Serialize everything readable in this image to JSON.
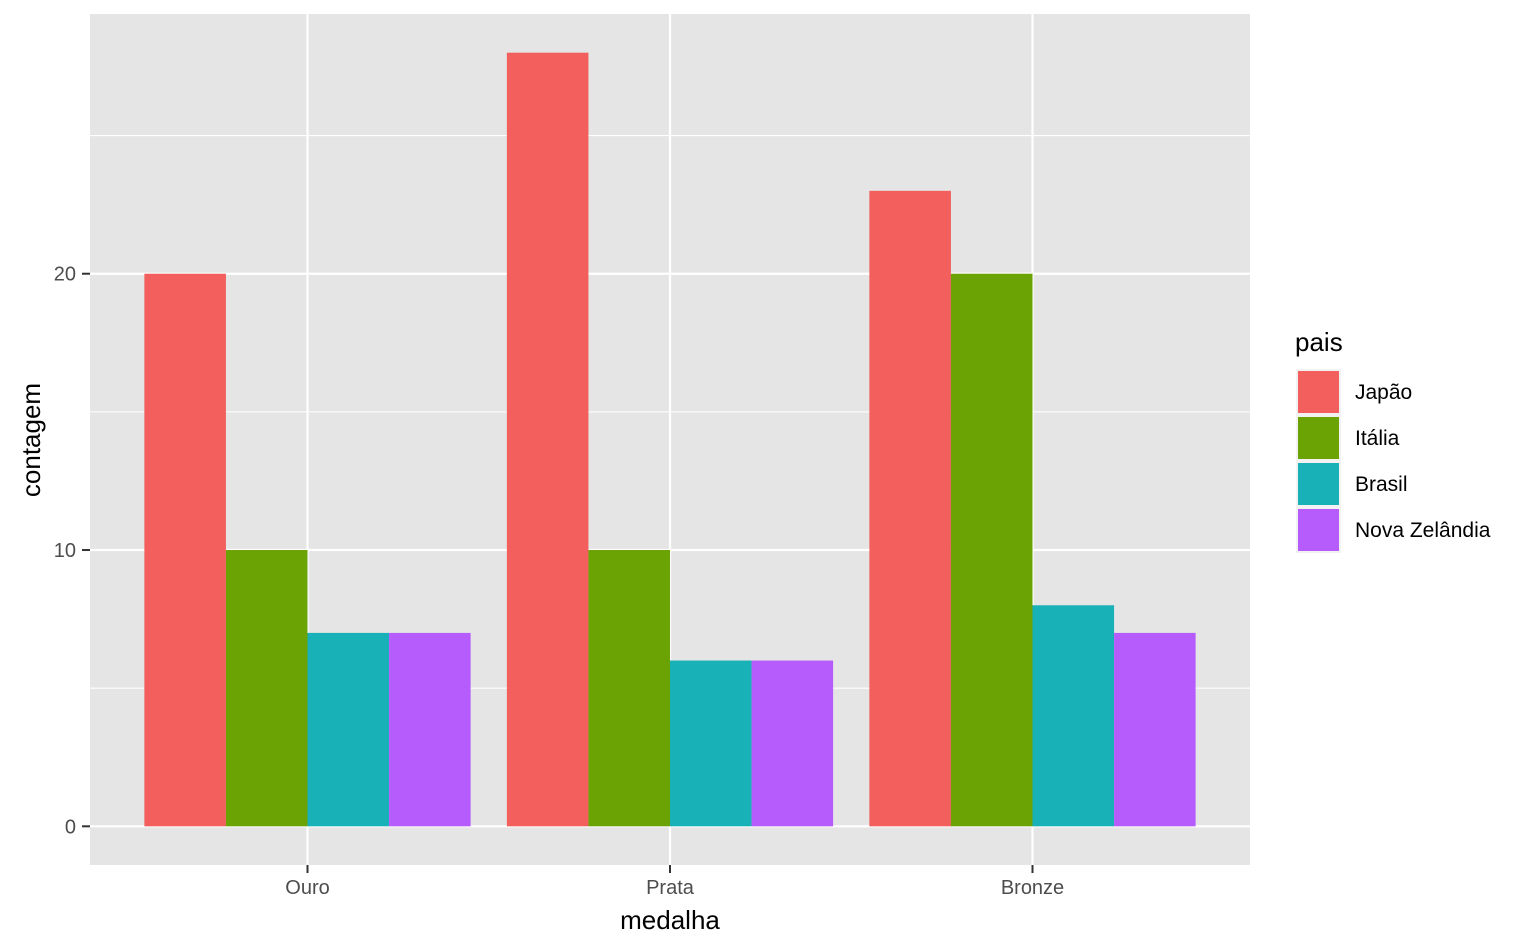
{
  "chart_data": {
    "type": "bar",
    "categories": [
      "Ouro",
      "Prata",
      "Bronze"
    ],
    "series": [
      {
        "name": "Japão",
        "values": [
          20,
          28,
          23
        ],
        "color": "#F25F5C"
      },
      {
        "name": "Itália",
        "values": [
          10,
          10,
          20
        ],
        "color": "#6BA304"
      },
      {
        "name": "Brasil",
        "values": [
          7,
          6,
          8
        ],
        "color": "#17B1B7"
      },
      {
        "name": "Nova Zelândia",
        "values": [
          7,
          6,
          7
        ],
        "color": "#B65CFD"
      }
    ],
    "xlabel": "medalha",
    "ylabel": "contagem",
    "legend_title": "pais",
    "legend_position": "right",
    "ylim": [
      -1.4,
      29.4
    ],
    "yticks": [
      0,
      10,
      20
    ],
    "grid": true
  }
}
